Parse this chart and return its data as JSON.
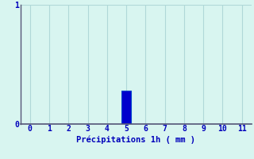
{
  "categories": [
    0,
    1,
    2,
    3,
    4,
    5,
    6,
    7,
    8,
    9,
    10,
    11
  ],
  "values": [
    0,
    0,
    0,
    0,
    0,
    0.28,
    0,
    0,
    0,
    0,
    0,
    0
  ],
  "bar_color": "#0000cc",
  "bar_edge_color": "#0044cc",
  "background_color": "#d8f5f0",
  "grid_color": "#b0d8d8",
  "axis_color": "#555577",
  "xlabel": "Précipitations 1h ( mm )",
  "xlabel_color": "#0000bb",
  "ylim": [
    0,
    1.0
  ],
  "xlim": [
    -0.5,
    11.5
  ],
  "tick_color": "#0000bb",
  "xlabel_fontsize": 7.5,
  "tick_fontsize": 7.0,
  "bar_width": 0.5
}
